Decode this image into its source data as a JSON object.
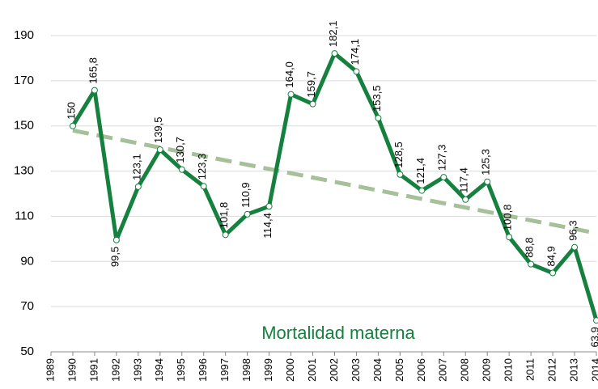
{
  "chart_data": {
    "type": "line",
    "x": [
      1990,
      1991,
      1992,
      1993,
      1994,
      1995,
      1996,
      1997,
      1998,
      1999,
      2000,
      2001,
      2002,
      2003,
      2004,
      2005,
      2006,
      2007,
      2008,
      2009,
      2010,
      2011,
      2012,
      2013,
      2014
    ],
    "series": [
      {
        "name": "Mortalidad materna",
        "color": "#16803f",
        "values": [
          150,
          165.8,
          99.5,
          123.1,
          139.5,
          130.7,
          123.3,
          101.8,
          110.9,
          114.4,
          164.0,
          159.7,
          182.1,
          174.1,
          153.5,
          128.5,
          121.4,
          127.3,
          117.4,
          125.3,
          100.8,
          88.8,
          84.9,
          96.3,
          63.9
        ],
        "value_labels": [
          "150",
          "165,8",
          "99,5",
          "123,1",
          "139,5",
          "130,7",
          "123,3",
          "101,8",
          "110,9",
          "114,4",
          "164,0",
          "159,7",
          "182,1",
          "174,1",
          "153,5",
          "128,5",
          "121,4",
          "127,3",
          "117,4",
          "125,3",
          "100,8",
          "88,8",
          "84,9",
          "96,3",
          "63,9"
        ]
      }
    ],
    "trendline": {
      "x": [
        1990,
        2014
      ],
      "values": [
        148,
        102.5
      ],
      "color": "#a6c19a"
    },
    "xlim": [
      1989,
      2014
    ],
    "xticks": [
      1989,
      1990,
      1991,
      1992,
      1993,
      1994,
      1995,
      1996,
      1997,
      1998,
      1999,
      2000,
      2001,
      2002,
      2003,
      2004,
      2005,
      2006,
      2007,
      2008,
      2009,
      2010,
      2011,
      2012,
      2013,
      2014
    ],
    "ylim": [
      50,
      190
    ],
    "yticks": [
      50,
      70,
      90,
      110,
      130,
      150,
      170,
      190
    ],
    "grid": true
  }
}
